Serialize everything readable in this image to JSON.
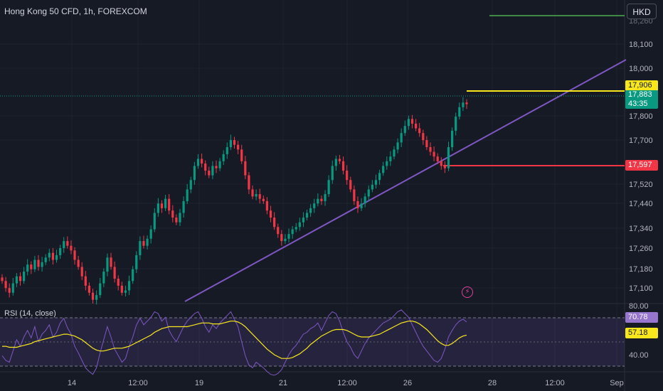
{
  "header": {
    "symbol_title": "Hong Kong 50 CFD, 1h, FOREXCOM",
    "currency": "HKD"
  },
  "rsi_panel": {
    "title": "RSI (14, close)",
    "upper_band": 80,
    "lower_band": 40,
    "rsi_value": "70.78",
    "ma_value": "57.18",
    "tick_labels": [
      "80.00",
      "40.00"
    ]
  },
  "price_tags": {
    "resistance": "17,906",
    "last_price": "17,883",
    "countdown": "43:35",
    "support": "17,597"
  },
  "colors": {
    "background": "#161a25",
    "up_candle": "#089981",
    "down_candle": "#f23645",
    "trendline": "#7e57c2",
    "resistance": "#f8e71c",
    "support": "#f23645",
    "target": "#4caf50",
    "rsi_line": "#7e57c2",
    "rsi_ma": "#f8e71c"
  },
  "icons": {
    "alert": "bolt-icon"
  },
  "chart_data": {
    "type": "candlestick",
    "title": "Hong Kong 50 CFD, 1h, FOREXCOM",
    "y_axis_ticks": [
      "18,100",
      "18,000",
      "17,800",
      "17,700",
      "17,520",
      "17,440",
      "17,340",
      "17,260",
      "17,180",
      "17,100"
    ],
    "x_axis_ticks": [
      "14",
      "12:00",
      "19",
      "21",
      "12:00",
      "26",
      "28",
      "12:00",
      "Sep"
    ],
    "ylim": [
      17040,
      18260
    ],
    "levels": {
      "resistance": 17906,
      "last": 17883,
      "support": 17597,
      "target": 18260
    },
    "series": [
      {
        "name": "Hong Kong 50 CFD",
        "close": [
          17130,
          17100,
          17080,
          17120,
          17150,
          17130,
          17170,
          17200,
          17180,
          17220,
          17190,
          17210,
          17230,
          17250,
          17220,
          17240,
          17270,
          17300,
          17280,
          17260,
          17220,
          17190,
          17150,
          17110,
          17080,
          17050,
          17070,
          17120,
          17170,
          17230,
          17190,
          17140,
          17110,
          17080,
          17090,
          17130,
          17180,
          17240,
          17300,
          17280,
          17310,
          17350,
          17420,
          17460,
          17440,
          17480,
          17430,
          17400,
          17380,
          17420,
          17470,
          17520,
          17560,
          17620,
          17650,
          17630,
          17600,
          17580,
          17620,
          17610,
          17640,
          17670,
          17700,
          17730,
          17710,
          17690,
          17640,
          17580,
          17520,
          17490,
          17500,
          17480,
          17470,
          17430,
          17400,
          17360,
          17330,
          17300,
          17310,
          17330,
          17350,
          17360,
          17380,
          17400,
          17420,
          17440,
          17460,
          17480,
          17470,
          17500,
          17560,
          17620,
          17650,
          17640,
          17600,
          17560,
          17520,
          17470,
          17440,
          17460,
          17490,
          17520,
          17540,
          17560,
          17590,
          17620,
          17640,
          17660,
          17690,
          17720,
          17760,
          17790,
          17820,
          17800,
          17780,
          17760,
          17730,
          17700,
          17680,
          17660,
          17640,
          17620,
          17610,
          17700,
          17770,
          17830,
          17870,
          17890,
          17883
        ],
        "rsi": [
          35,
          30,
          28,
          40,
          52,
          45,
          55,
          62,
          54,
          66,
          50,
          58,
          62,
          68,
          55,
          60,
          70,
          75,
          65,
          58,
          45,
          38,
          30,
          22,
          18,
          15,
          22,
          38,
          52,
          66,
          55,
          42,
          35,
          28,
          32,
          45,
          55,
          68,
          75,
          68,
          72,
          76,
          82,
          80,
          72,
          76,
          62,
          55,
          50,
          58,
          66,
          72,
          76,
          80,
          82,
          75,
          66,
          60,
          68,
          64,
          70,
          74,
          78,
          82,
          74,
          66,
          50,
          35,
          25,
          22,
          28,
          25,
          22,
          18,
          15,
          14,
          16,
          20,
          28,
          36,
          42,
          46,
          52,
          58,
          60,
          64,
          66,
          70,
          62,
          70,
          78,
          82,
          80,
          72,
          60,
          50,
          44,
          36,
          32,
          40,
          48,
          54,
          58,
          62,
          66,
          70,
          72,
          74,
          78,
          82,
          84,
          80,
          76,
          68,
          60,
          52,
          45,
          40,
          35,
          30,
          28,
          32,
          42,
          55,
          62,
          68,
          72,
          74,
          71
        ],
        "rsi_ma": [
          45,
          45,
          44,
          44,
          44,
          45,
          46,
          47,
          48,
          50,
          51,
          52,
          53,
          54,
          55,
          56,
          57,
          58,
          58,
          57,
          56,
          54,
          52,
          49,
          46,
          43,
          41,
          40,
          40,
          41,
          42,
          43,
          43,
          43,
          44,
          45,
          47,
          49,
          51,
          53,
          55,
          57,
          60,
          62,
          64,
          65,
          66,
          66,
          66,
          66,
          66,
          66,
          67,
          68,
          69,
          70,
          70,
          70,
          69,
          69,
          69,
          70,
          71,
          72,
          72,
          71,
          69,
          66,
          62,
          58,
          54,
          50,
          46,
          42,
          39,
          36,
          34,
          32,
          32,
          32,
          33,
          35,
          37,
          40,
          43,
          47,
          50,
          53,
          56,
          58,
          60,
          62,
          63,
          63,
          63,
          62,
          60,
          58,
          56,
          55,
          55,
          55,
          56,
          57,
          58,
          60,
          62,
          64,
          66,
          68,
          70,
          71,
          72,
          72,
          71,
          69,
          66,
          63,
          59,
          55,
          51,
          48,
          46,
          46,
          48,
          51,
          54,
          56,
          57
        ]
      }
    ]
  }
}
